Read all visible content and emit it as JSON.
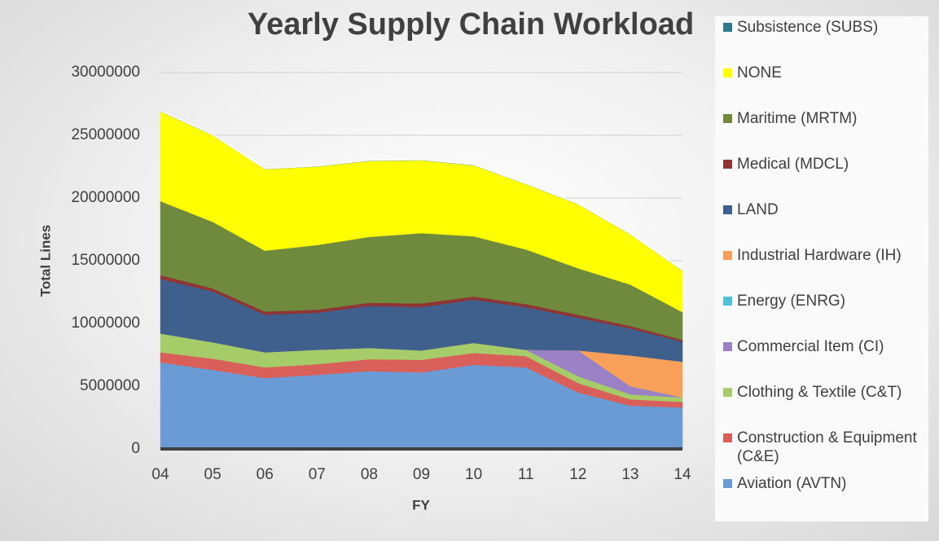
{
  "chart_data": {
    "type": "stacked_area",
    "title": "Yearly Supply Chain Workload",
    "x_label": "FY",
    "y_label": "Total Lines",
    "categories": [
      "04",
      "05",
      "06",
      "07",
      "08",
      "09",
      "10",
      "11",
      "12",
      "13",
      "14"
    ],
    "ylim": [
      0,
      30000000
    ],
    "yticks": [
      0,
      5000000,
      10000000,
      15000000,
      20000000,
      25000000,
      30000000
    ],
    "grid": true,
    "legend": "right",
    "series": [
      {
        "name": "Aviation (AVTN)",
        "color": "#6a9bd4",
        "values": [
          6900000,
          6300000,
          5650000,
          5900000,
          6200000,
          6100000,
          6700000,
          6500000,
          4500000,
          3450000,
          3300000
        ]
      },
      {
        "name": "Construction & Equipment (C&E)",
        "color": "#d9605a",
        "values": [
          800000,
          900000,
          850000,
          850000,
          950000,
          1000000,
          950000,
          900000,
          750000,
          500000,
          450000
        ]
      },
      {
        "name": "Clothing & Textile (C&T)",
        "color": "#a6cc6a",
        "values": [
          1500000,
          1300000,
          1200000,
          1150000,
          900000,
          750000,
          800000,
          500000,
          550000,
          400000,
          350000
        ]
      },
      {
        "name": "Commercial Item (CI)",
        "color": "#9b80c6",
        "values": [
          0,
          0,
          0,
          0,
          0,
          0,
          0,
          0,
          2050000,
          650000,
          0
        ]
      },
      {
        "name": "Energy (ENRG)",
        "color": "#4fc0d8",
        "values": [
          0,
          0,
          0,
          0,
          0,
          0,
          0,
          0,
          0,
          0,
          0
        ]
      },
      {
        "name": "Industrial Hardware (IH)",
        "color": "#f8a05a",
        "values": [
          0,
          0,
          0,
          0,
          0,
          0,
          0,
          0,
          0,
          2450000,
          2850000
        ]
      },
      {
        "name": "LAND",
        "color": "#3f5f8c",
        "values": [
          4350000,
          4050000,
          3000000,
          2950000,
          3350000,
          3450000,
          3450000,
          3400000,
          2600000,
          2150000,
          1600000
        ]
      },
      {
        "name": "Medical (MDCL)",
        "color": "#8f3535",
        "values": [
          300000,
          250000,
          250000,
          250000,
          250000,
          300000,
          250000,
          250000,
          250000,
          200000,
          150000
        ]
      },
      {
        "name": "Maritime (MRTM)",
        "color": "#6f8a3c",
        "values": [
          5900000,
          5300000,
          4850000,
          5150000,
          5250000,
          5600000,
          4800000,
          4350000,
          3700000,
          3300000,
          2200000
        ]
      },
      {
        "name": "NONE",
        "color": "#ffff00",
        "values": [
          7150000,
          6900000,
          6500000,
          6250000,
          6050000,
          5800000,
          5650000,
          5200000,
          5100000,
          4000000,
          3300000
        ]
      },
      {
        "name": "Subsistence (SUBS)",
        "color": "#2e7a8a",
        "values": [
          50000,
          50000,
          50000,
          50000,
          50000,
          50000,
          50000,
          50000,
          50000,
          50000,
          50000
        ]
      }
    ]
  }
}
